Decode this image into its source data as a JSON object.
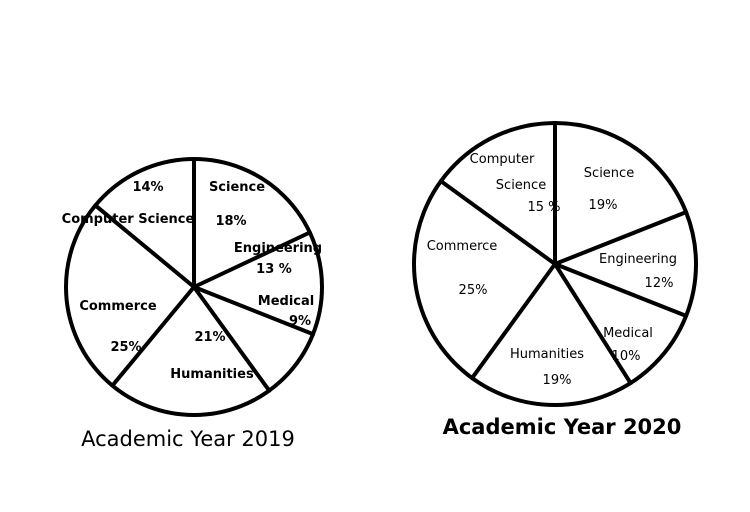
{
  "chart_data": [
    {
      "type": "pie",
      "title": "Academic Year 2019",
      "categories": [
        "Science",
        "Engineering",
        "Medical",
        "Humanities",
        "Commerce",
        "Computer Science"
      ],
      "values": [
        18,
        13,
        9,
        21,
        25,
        14
      ],
      "labels": [
        {
          "name": "Science",
          "value": "18%"
        },
        {
          "name": "Engineering",
          "value": "13 %"
        },
        {
          "name": "Medical",
          "value": "9%"
        },
        {
          "name": "Humanities",
          "value": "21%"
        },
        {
          "name": "Commerce",
          "value": "25%"
        },
        {
          "name": "Computer Science",
          "value": "14%"
        }
      ],
      "legend": "none"
    },
    {
      "type": "pie",
      "title": "Academic Year 2020",
      "categories": [
        "Science",
        "Engineering",
        "Medical",
        "Humanities",
        "Commerce",
        "Computer Science"
      ],
      "values": [
        19,
        12,
        10,
        19,
        25,
        15
      ],
      "labels": [
        {
          "name": "Science",
          "value": "19%"
        },
        {
          "name": "Engineering",
          "value": "12%"
        },
        {
          "name": "Medical",
          "value": "10%"
        },
        {
          "name": "Humanities",
          "value": "19%"
        },
        {
          "name": "Commerce",
          "value": "25%"
        },
        {
          "name": "Computer Science",
          "value": "15 %",
          "name_lines": [
            "Computer",
            "Science"
          ]
        }
      ],
      "legend": "none"
    }
  ]
}
